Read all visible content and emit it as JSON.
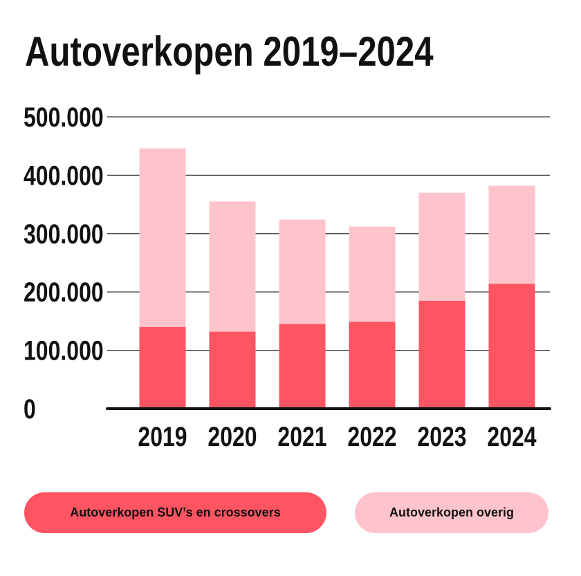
{
  "chart_data": {
    "type": "bar",
    "stacked": true,
    "title": "Autoverkopen 2019–2024",
    "categories": [
      "2019",
      "2020",
      "2021",
      "2022",
      "2023",
      "2024"
    ],
    "series": [
      {
        "name": "Autoverkopen SUV’s en crossovers",
        "color": "#ff5462",
        "values": [
          140000,
          132000,
          145000,
          149000,
          185000,
          214000
        ]
      },
      {
        "name": "Autoverkopen overig",
        "color": "#ffc4cb",
        "values": [
          306000,
          223000,
          179000,
          163000,
          185000,
          168000
        ]
      }
    ],
    "ylim": [
      0,
      500000
    ],
    "yticks": [
      0,
      100000,
      200000,
      300000,
      400000,
      500000
    ],
    "ytick_labels": [
      "0",
      "100.000",
      "200.000",
      "300.000",
      "400.000",
      "500.000"
    ],
    "grid": true,
    "legend_placement": "bottom"
  }
}
